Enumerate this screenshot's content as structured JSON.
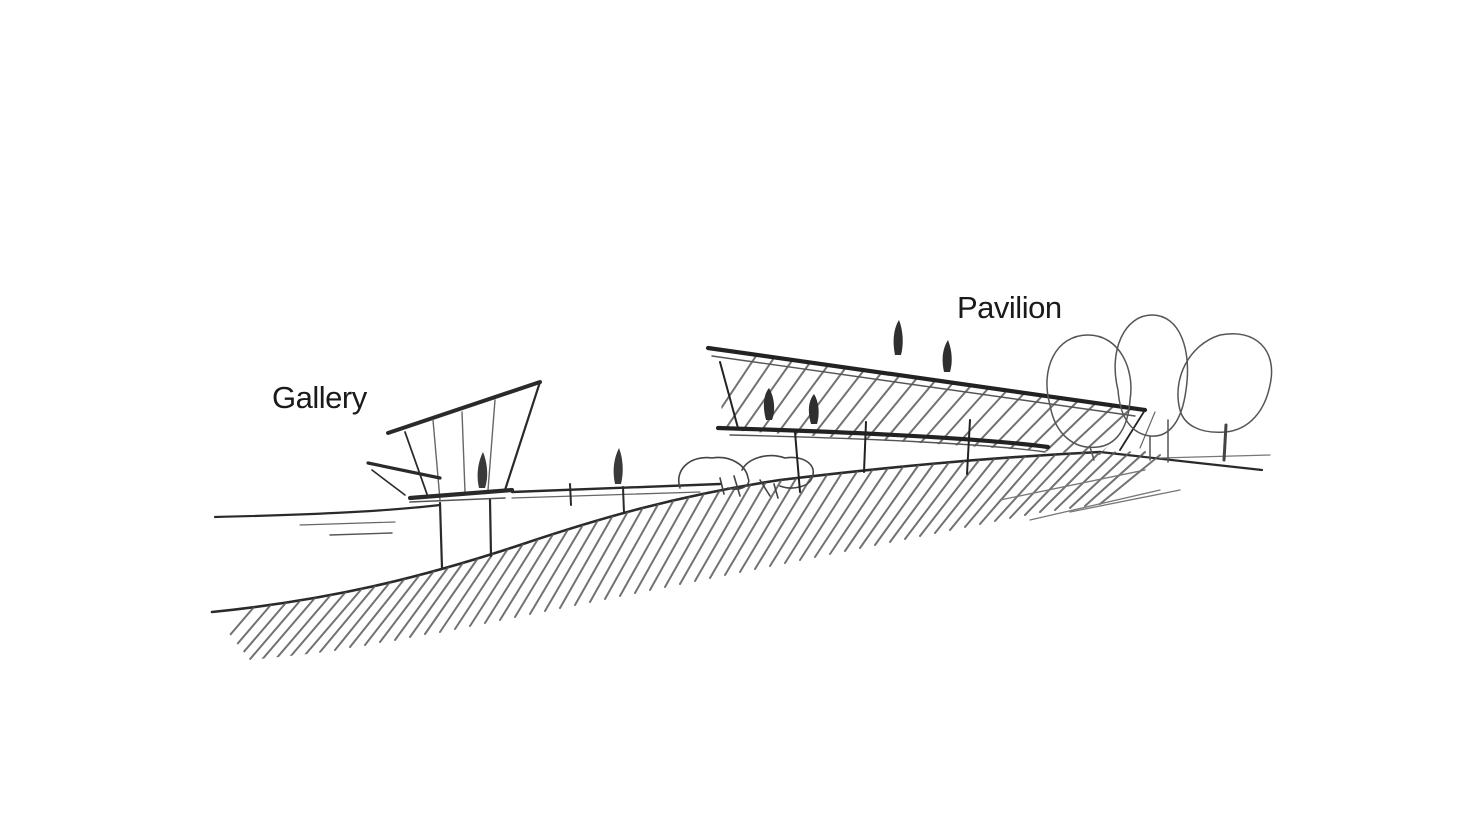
{
  "sketch": {
    "labels": {
      "gallery": "Gallery",
      "pavilion": "Pavilion"
    },
    "colors": {
      "background": "#ffffff",
      "pencil": "#2a2a2a",
      "hatch": "#5a5a5a"
    }
  }
}
